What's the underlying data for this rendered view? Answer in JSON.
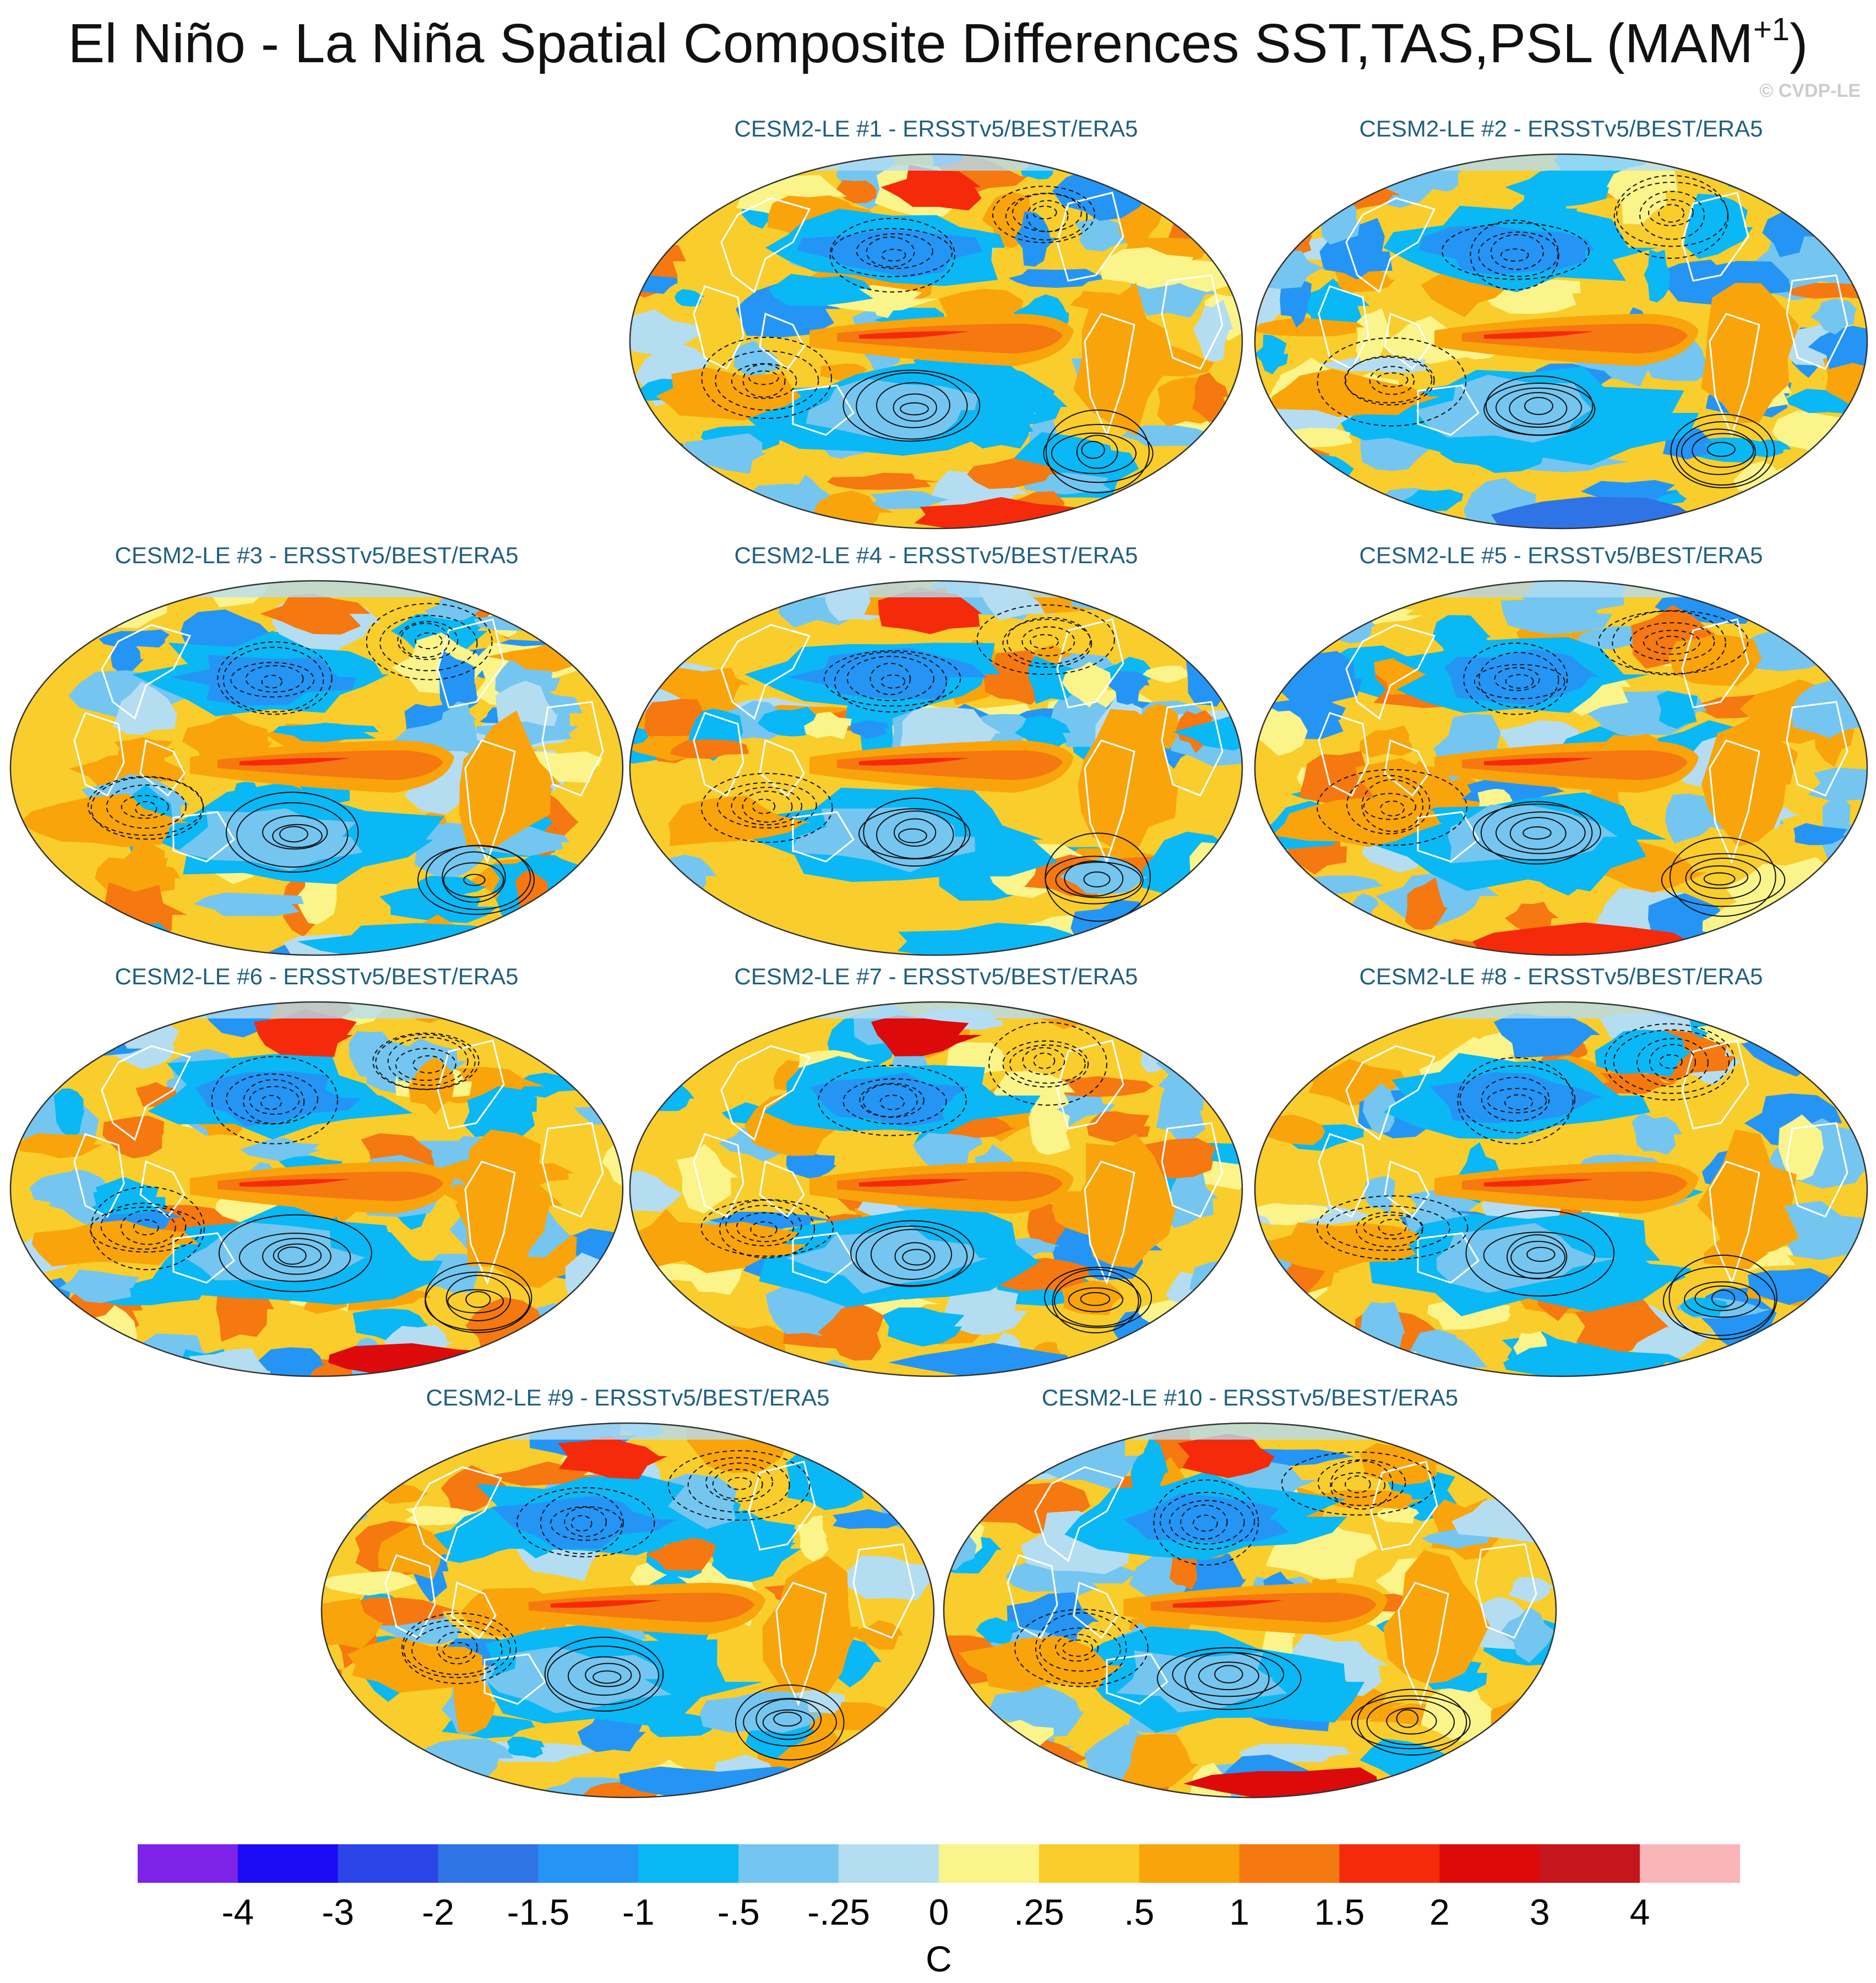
{
  "title": "El Niño - La Niña Spatial Composite Differences SST,TAS,PSL (MAM",
  "title_superscript": "+1",
  "title_close": ")",
  "copyright": "© CVDP-LE",
  "panels": [
    {
      "label": "CESM2-LE #1 - ERSSTv5/BEST/ERA5",
      "variant": 1
    },
    {
      "label": "CESM2-LE #2 - ERSSTv5/BEST/ERA5",
      "variant": 2
    },
    {
      "label": "CESM2-LE #3 - ERSSTv5/BEST/ERA5",
      "variant": 3
    },
    {
      "label": "CESM2-LE #4 - ERSSTv5/BEST/ERA5",
      "variant": 4
    },
    {
      "label": "CESM2-LE #5 - ERSSTv5/BEST/ERA5",
      "variant": 5
    },
    {
      "label": "CESM2-LE #6 - ERSSTv5/BEST/ERA5",
      "variant": 6
    },
    {
      "label": "CESM2-LE #7 - ERSSTv5/BEST/ERA5",
      "variant": 7
    },
    {
      "label": "CESM2-LE #8 - ERSSTv5/BEST/ERA5",
      "variant": 8
    },
    {
      "label": "CESM2-LE #9 - ERSSTv5/BEST/ERA5",
      "variant": 9
    },
    {
      "label": "CESM2-LE #10 - ERSSTv5/BEST/ERA5",
      "variant": 10
    }
  ],
  "colorbar": {
    "units": "C",
    "labels": [
      "-4",
      "-3",
      "-2",
      "-1.5",
      "-1",
      "-.5",
      "-.25",
      "0",
      ".25",
      ".5",
      "1",
      "1.5",
      "2",
      "3",
      "4"
    ],
    "colors": [
      "#7e22e8",
      "#1c0cf5",
      "#2b45e8",
      "#2f74e6",
      "#2495f5",
      "#0ab8f5",
      "#74c6f0",
      "#b5ddf2",
      "#faf48a",
      "#f9cd2c",
      "#f9a40a",
      "#f57810",
      "#f52a0a",
      "#dc0a0a",
      "#c4161c",
      "#f9b5b8"
    ]
  }
}
